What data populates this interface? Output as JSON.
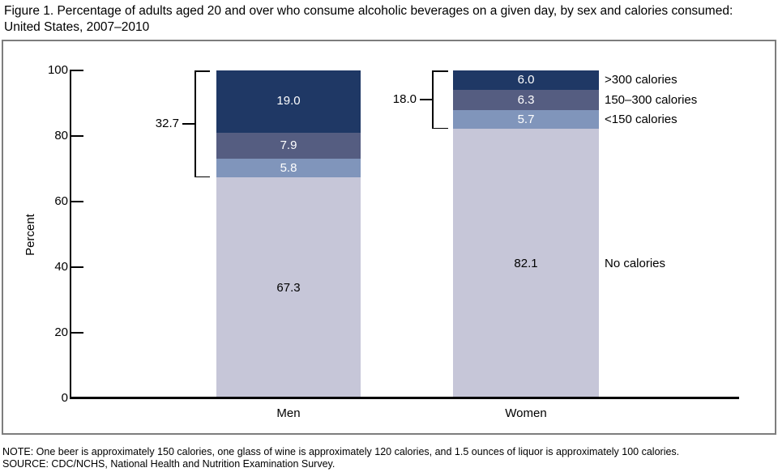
{
  "title": "Figure 1. Percentage of adults aged 20 and over who consume alcoholic beverages on a given day, by sex and calories consumed: United States, 2007–2010",
  "note": "NOTE: One beer is approximately 150 calories, one glass of wine is approximately 120 calories, and 1.5 ounces of liquor is approximately 100 calories.",
  "source": "SOURCE: CDC/NCHS, National Health and Nutrition Examination Survey.",
  "chart_data": {
    "type": "bar",
    "stacked": true,
    "title": "Figure 1. Percentage of adults aged 20 and over who consume alcoholic beverages on a given day, by sex and calories consumed: United States, 2007–2010",
    "categories": [
      "Men",
      "Women"
    ],
    "xlabel": "",
    "ylabel": "Percent",
    "ylim": [
      0,
      100
    ],
    "yticks": [
      0,
      20,
      40,
      60,
      80,
      100
    ],
    "grid": false,
    "legend_position": "right-of-bars",
    "series": [
      {
        "name": "No calories",
        "values": [
          67.3,
          82.1
        ],
        "labels": [
          "67.3",
          "82.1"
        ],
        "color": "#c6c6d8",
        "label_color": "#000000"
      },
      {
        "name": "<150 calories",
        "values": [
          5.8,
          5.7
        ],
        "labels": [
          "5.8",
          "5.7"
        ],
        "color": "#8095bb",
        "label_color": "#ffffff"
      },
      {
        "name": "150–300 calories",
        "values": [
          7.9,
          6.3
        ],
        "labels": [
          "7.9",
          "6.3"
        ],
        "color": "#555d81",
        "label_color": "#ffffff"
      },
      {
        "name": ">300 calories",
        "values": [
          19.0,
          6.0
        ],
        "labels": [
          "19.0",
          "6.0"
        ],
        "color": "#1f3865",
        "label_color": "#ffffff"
      }
    ],
    "annotations": {
      "brackets": [
        {
          "category": "Men",
          "label": "32.7",
          "total": 32.7
        },
        {
          "category": "Women",
          "label": "18.0",
          "total": 18.0
        }
      ]
    },
    "colors": {
      "axis": "#000000",
      "frame": "#7d7d7d"
    }
  }
}
